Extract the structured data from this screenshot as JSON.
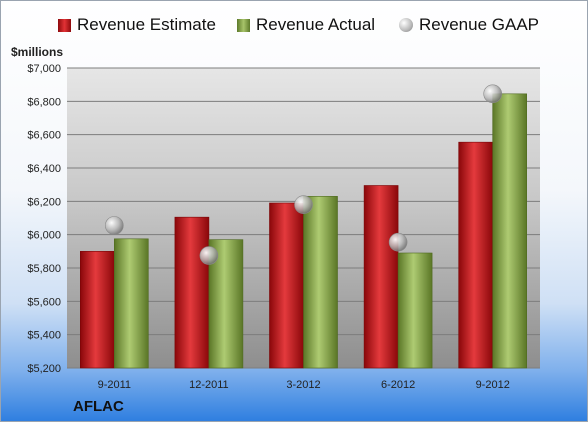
{
  "legend": {
    "estimate": "Revenue Estimate",
    "actual": "Revenue Actual",
    "gaap": "Revenue GAAP"
  },
  "unit_label": "$millions",
  "company": "AFLAC",
  "colors": {
    "estimate": "#c8171b",
    "actual": "#8fae4f",
    "gaap": "#b0b0b0"
  },
  "chart_data": {
    "type": "bar",
    "categories": [
      "9-2011",
      "12-2011",
      "3-2012",
      "6-2012",
      "9-2012"
    ],
    "series": [
      {
        "name": "Revenue Estimate",
        "values": [
          5900,
          6105,
          6190,
          6295,
          6555
        ]
      },
      {
        "name": "Revenue Actual",
        "values": [
          5975,
          5970,
          6230,
          5890,
          6845
        ]
      },
      {
        "name": "Revenue GAAP",
        "type": "scatter",
        "values": [
          6055,
          5875,
          6180,
          5955,
          6845
        ]
      }
    ],
    "ylim": [
      5200,
      7000
    ],
    "yticks": [
      "$5,200",
      "$5,400",
      "$5,600",
      "$5,800",
      "$6,000",
      "$6,200",
      "$6,400",
      "$6,600",
      "$6,800",
      "$7,000"
    ],
    "ytick_values": [
      5200,
      5400,
      5600,
      5800,
      6000,
      6200,
      6400,
      6600,
      6800,
      7000
    ],
    "grid": true,
    "legend_position": "top"
  }
}
